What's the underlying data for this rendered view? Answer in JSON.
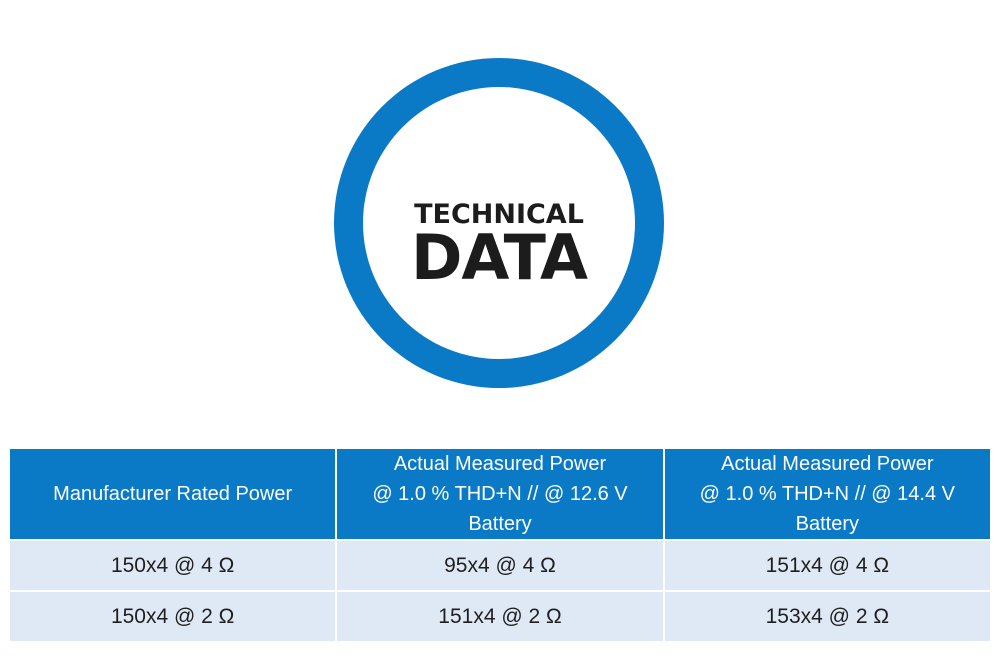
{
  "badge": {
    "line1": "TECHNICAL",
    "line2": "DATA"
  },
  "table": {
    "headers": [
      {
        "line1": "Manufacturer Rated Power",
        "line2": ""
      },
      {
        "line1": "Actual Measured Power",
        "line2": "@ 1.0 % THD+N // @ 12.6 V Battery"
      },
      {
        "line1": "Actual Measured Power",
        "line2": "@ 1.0 % THD+N // @ 14.4 V Battery"
      }
    ],
    "rows": [
      [
        "150x4 @ 4 Ω",
        "95x4 @ 4 Ω",
        "151x4 @ 4 Ω"
      ],
      [
        "150x4 @ 2 Ω",
        "151x4 @ 2 Ω",
        "153x4 @ 2 Ω"
      ]
    ]
  },
  "colors": {
    "accent": "#0a79c6",
    "row_background": "#dfe9f6",
    "text": "#1c1c1c"
  }
}
